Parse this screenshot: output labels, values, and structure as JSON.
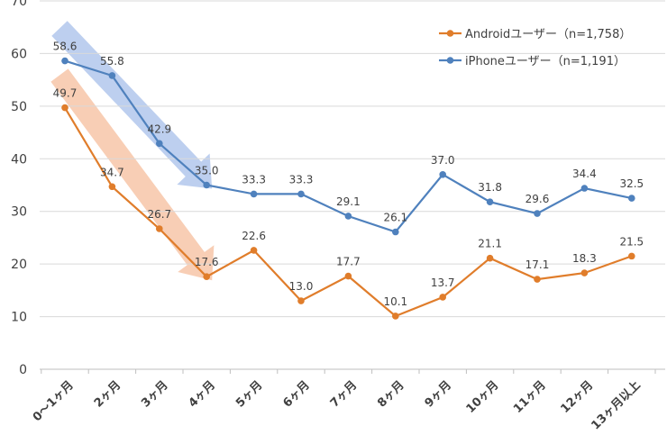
{
  "chart_data": {
    "type": "line",
    "title": "",
    "xlabel": "",
    "ylabel": "",
    "ylim": [
      0,
      70
    ],
    "yticks": [
      0,
      10,
      20,
      30,
      40,
      50,
      60,
      70
    ],
    "grid": true,
    "legend_position": "top-right",
    "categories": [
      "0〜1ヶ月",
      "2ヶ月",
      "3ヶ月",
      "4ヶ月",
      "5ヶ月",
      "6ヶ月",
      "7ヶ月",
      "8ヶ月",
      "9ヶ月",
      "10ヶ月",
      "11ヶ月",
      "12ヶ月",
      "13ヶ月以上"
    ],
    "series": [
      {
        "name": "Androidユーザー（n=1,758）",
        "color": "#E07D2B",
        "values": [
          49.7,
          34.7,
          26.7,
          17.6,
          22.6,
          13.0,
          17.7,
          10.1,
          13.7,
          21.1,
          17.1,
          18.3,
          21.5
        ],
        "labels": [
          "49.7",
          "34.7",
          "26.7",
          "17.6",
          "22.6",
          "13.0",
          "17.7",
          "10.1",
          "13.7",
          "21.1",
          "17.1",
          "18.3",
          "21.5"
        ]
      },
      {
        "name": "iPhoneユーザー（n=1,191）",
        "color": "#4F81BD",
        "values": [
          58.6,
          55.8,
          42.9,
          35.0,
          33.3,
          33.3,
          29.1,
          26.1,
          37.0,
          31.8,
          29.6,
          34.4,
          32.5
        ],
        "labels": [
          "58.6",
          "55.8",
          "42.9",
          "35.0",
          "33.3",
          "33.3",
          "29.1",
          "26.1",
          "37.0",
          "31.8",
          "29.6",
          "34.4",
          "32.5"
        ]
      }
    ],
    "annotations": [
      {
        "kind": "trend-arrow",
        "series": 1,
        "from_index": 0,
        "to_index": 3,
        "color": "#A7BFEA"
      },
      {
        "kind": "trend-arrow",
        "series": 0,
        "from_index": 0,
        "to_index": 3,
        "color": "#F6BE9C"
      }
    ]
  }
}
